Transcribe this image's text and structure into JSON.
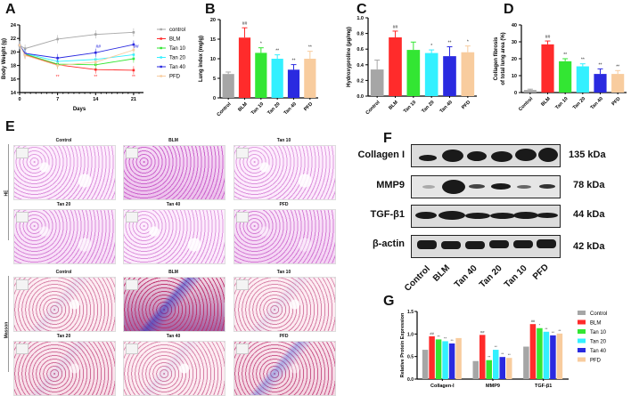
{
  "figure": {
    "panel_labels": [
      "A",
      "B",
      "C",
      "D",
      "E",
      "F",
      "G"
    ]
  },
  "colors": {
    "Control": "#a6a6a6",
    "BLM": "#ff2b2b",
    "Tan 10": "#33e633",
    "Tan 20": "#33f0ff",
    "Tan 40": "#2a2ae0",
    "PFD": "#f8cc9e"
  },
  "chart_data": [
    {
      "id": "A",
      "type": "line",
      "title": "",
      "xlabel": "Days",
      "ylabel": "Body Weight (g)",
      "x": [
        0,
        1,
        7,
        14,
        21
      ],
      "xticks": [
        "0",
        "7",
        "14",
        "21"
      ],
      "yticks": [
        "14",
        "16",
        "18",
        "20",
        "22",
        "24"
      ],
      "ylim": [
        14,
        24
      ],
      "legend": [
        "control",
        "BLM",
        "Tan 10",
        "Tan 20",
        "Tan 40",
        "PFD"
      ],
      "legend_position": "right",
      "series": [
        {
          "name": "control",
          "values": [
            21.0,
            20.5,
            21.9,
            22.6,
            22.9
          ]
        },
        {
          "name": "BLM",
          "values": [
            21.0,
            19.6,
            18.1,
            17.4,
            17.3
          ]
        },
        {
          "name": "Tan 10",
          "values": [
            21.0,
            19.7,
            18.2,
            18.1,
            19.0
          ]
        },
        {
          "name": "Tan 20",
          "values": [
            21.0,
            19.8,
            18.6,
            18.9,
            19.6
          ]
        },
        {
          "name": "Tan 40",
          "values": [
            21.0,
            19.8,
            19.1,
            19.9,
            21.1
          ]
        },
        {
          "name": "PFD",
          "values": [
            21.0,
            19.5,
            18.0,
            18.5,
            20.3
          ]
        }
      ],
      "annotations": [
        "** (BLM, day 7)",
        "** (BLM, day 14)",
        "** (BLM, day 21)",
        "## (Tan 40, day 14)",
        "## (Tan 40, day 21)"
      ]
    },
    {
      "id": "B",
      "type": "bar",
      "title": "",
      "xlabel": "",
      "ylabel": "Lung index (mg/g)",
      "categories": [
        "Control",
        "BLM",
        "Tan 10",
        "Tan 20",
        "Tan 40",
        "PFD"
      ],
      "values": [
        6.1,
        15.4,
        11.5,
        10.0,
        7.2,
        10.0
      ],
      "errors": [
        0.5,
        2.5,
        1.3,
        1.0,
        1.3,
        1.9
      ],
      "annotations": [
        "",
        "##",
        "*",
        "**",
        "**",
        "**"
      ],
      "yticks": [
        "0",
        "5",
        "10",
        "15",
        "20"
      ],
      "ylim": [
        0,
        20
      ]
    },
    {
      "id": "C",
      "type": "bar",
      "title": "",
      "xlabel": "",
      "ylabel": "Hydroxyproline (μg/mg)",
      "categories": [
        "Control",
        "BLM",
        "Tan 10",
        "Tan 20",
        "Tan 40",
        "PFD"
      ],
      "values": [
        0.34,
        0.75,
        0.59,
        0.55,
        0.51,
        0.56
      ],
      "errors": [
        0.12,
        0.08,
        0.1,
        0.04,
        0.12,
        0.08
      ],
      "annotations": [
        "",
        "##",
        "",
        "*",
        "**",
        "*"
      ],
      "yticks": [
        "0.0",
        "0.2",
        "0.4",
        "0.6",
        "0.8",
        "1.0"
      ],
      "ylim": [
        0,
        1.0
      ]
    },
    {
      "id": "D",
      "type": "bar",
      "title": "",
      "xlabel": "",
      "ylabel": "Collagen fibrosis of total lung area (%)",
      "categories": [
        "Control",
        "BLM",
        "Tan 10",
        "Tan 20",
        "Tan 40",
        "PFD"
      ],
      "values": [
        1.5,
        28.5,
        18.5,
        15.5,
        11.0,
        11.0
      ],
      "errors": [
        0.5,
        2.0,
        1.5,
        1.5,
        3.0,
        2.0
      ],
      "annotations": [
        "",
        "##",
        "**",
        "**",
        "**",
        "**"
      ],
      "yticks": [
        "0",
        "10",
        "20",
        "30",
        "40"
      ],
      "ylim": [
        0,
        40
      ]
    },
    {
      "id": "G",
      "type": "bar",
      "title": "",
      "xlabel": "",
      "ylabel": "Relative Protein Expression",
      "categories": [
        "Collagen-Ⅰ",
        "MMP9",
        "TGF-β1"
      ],
      "yticks": [
        "0.0",
        "0.5",
        "1.0",
        "1.5"
      ],
      "ylim": [
        0,
        1.5
      ],
      "legend": [
        "Control",
        "BLM",
        "Tan 10",
        "Tan 20",
        "Tan 40",
        "PFD"
      ],
      "legend_position": "right",
      "series": [
        {
          "name": "Control",
          "values": [
            0.65,
            0.4,
            0.72
          ],
          "annotations": [
            "",
            "",
            ""
          ]
        },
        {
          "name": "BLM",
          "values": [
            0.95,
            0.98,
            1.22
          ],
          "annotations": [
            "##",
            "##",
            "##"
          ]
        },
        {
          "name": "Tan 10",
          "values": [
            0.88,
            0.42,
            1.13
          ],
          "annotations": [
            "**",
            "**",
            "*"
          ]
        },
        {
          "name": "Tan 20",
          "values": [
            0.84,
            0.65,
            1.05
          ],
          "annotations": [
            "**",
            "**",
            "**"
          ]
        },
        {
          "name": "Tan 40",
          "values": [
            0.79,
            0.49,
            0.97
          ],
          "annotations": [
            "**",
            "**",
            "**"
          ]
        },
        {
          "name": "PFD",
          "values": [
            0.91,
            0.47,
            1.01
          ],
          "annotations": [
            "",
            "**",
            "**"
          ]
        }
      ]
    }
  ],
  "panelE": {
    "row_labels": [
      "HE",
      "Masson"
    ],
    "titles": [
      "Control",
      "BLM",
      "Tan 10",
      "Tan 20",
      "Tan 40",
      "PFD"
    ]
  },
  "panelF": {
    "proteins": [
      {
        "name": "Collagen I",
        "kda": "135 kDa"
      },
      {
        "name": "MMP9",
        "kda": "78 kDa"
      },
      {
        "name": "TGF-β1",
        "kda": "44 kDa"
      },
      {
        "name": "β-actin",
        "kda": "42 kDa"
      }
    ],
    "lanes": [
      "Control",
      "BLM",
      "Tan 40",
      "Tan 20",
      "Tan 10",
      "PFD"
    ]
  }
}
